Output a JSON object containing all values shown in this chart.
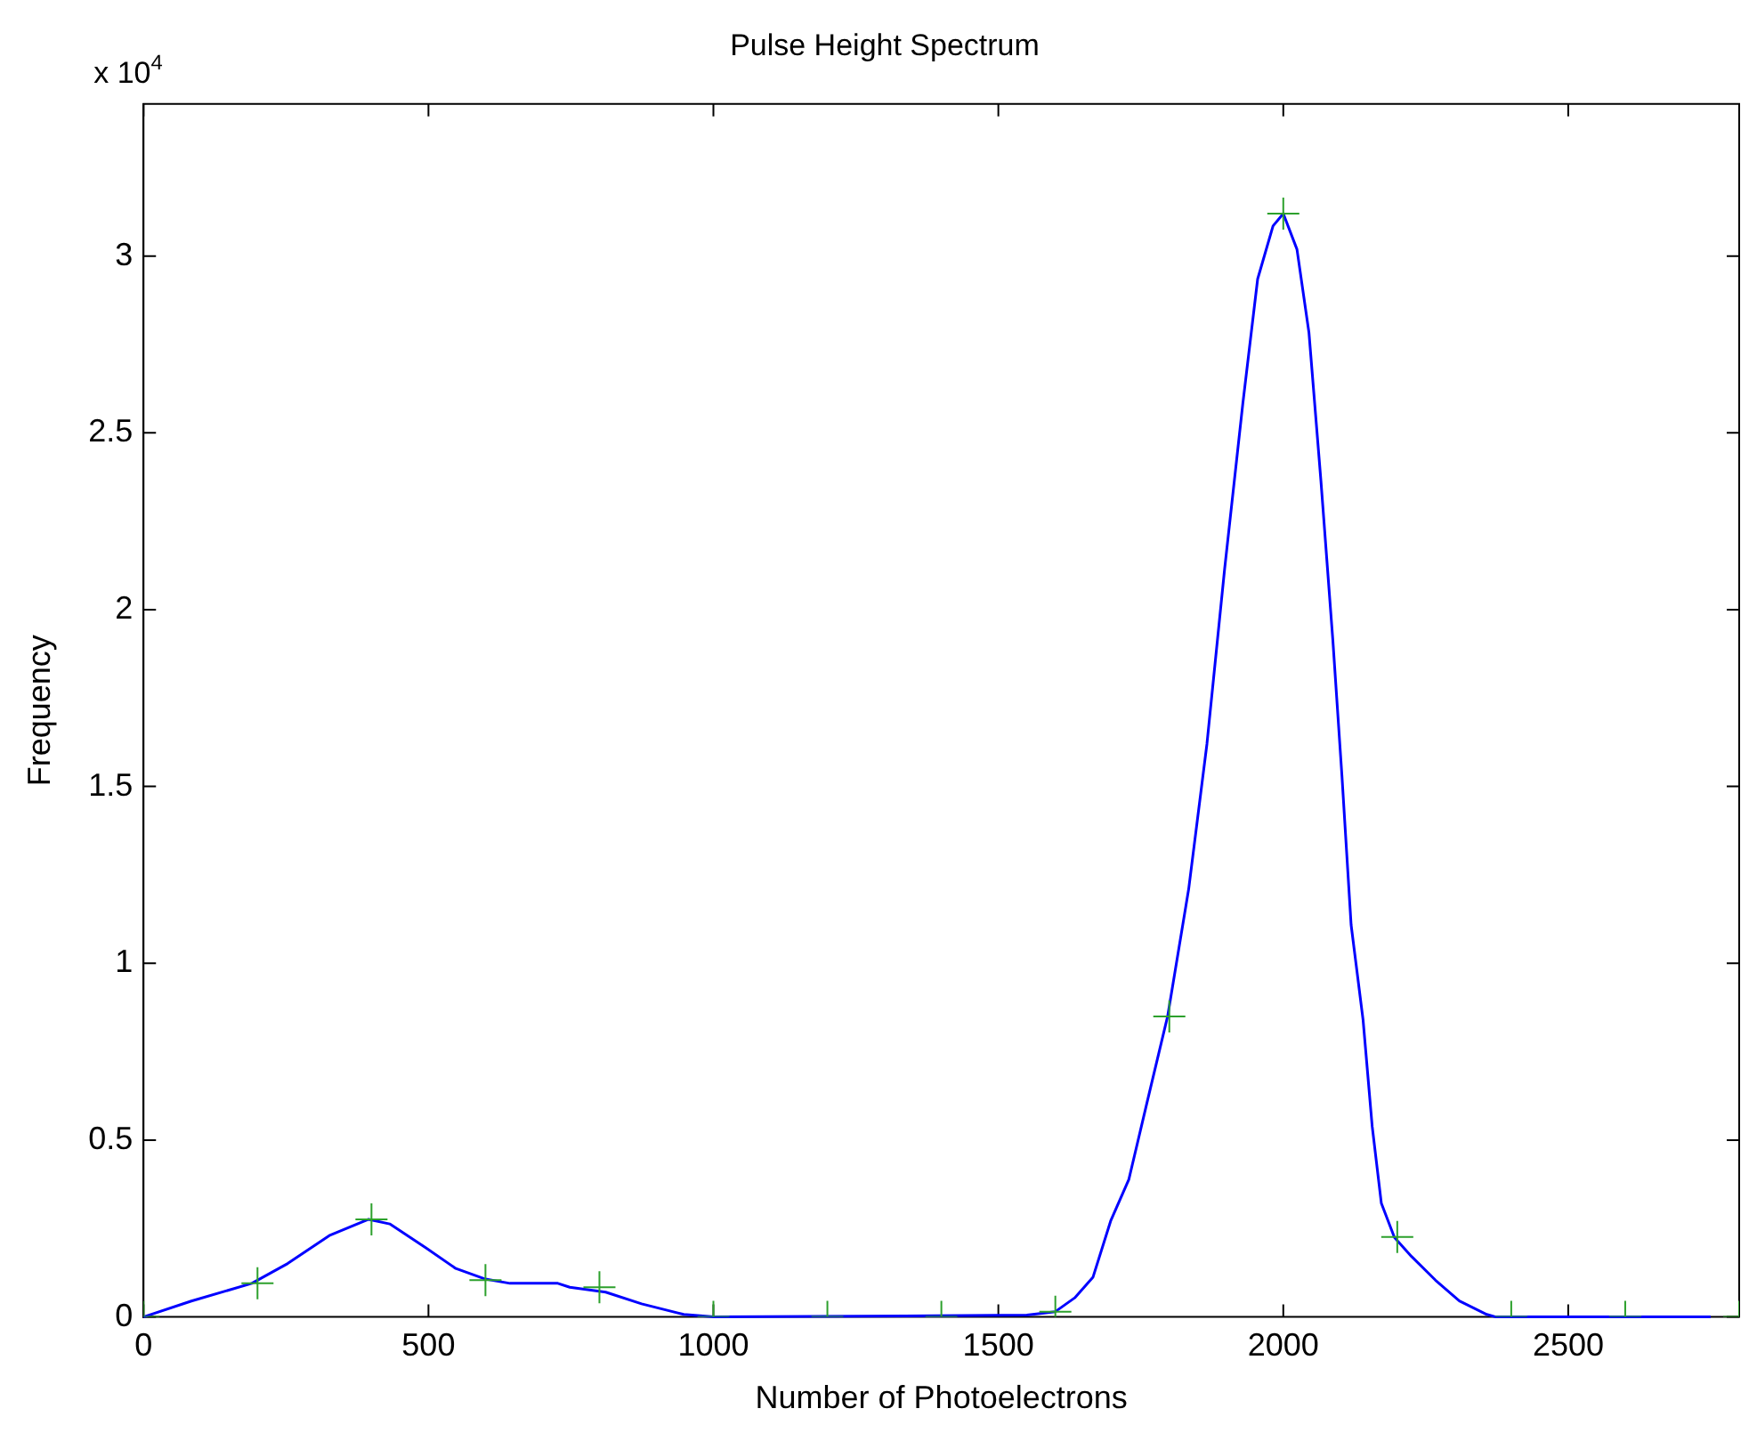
{
  "chart_data": {
    "type": "line",
    "title": "Pulse Height Spectrum",
    "xlabel": "Number of Photoelectrons",
    "ylabel": "Frequency",
    "annotations": [
      "x 10$^{4}$"
    ],
    "series": [
      {
        "color": "#0000ff",
        "marker": "none",
        "x": [
          0,
          84,
          190,
          253,
          326,
          395,
          432,
          495,
          548,
          600,
          643,
          727,
          748,
          811,
          874,
          948,
          1001,
          1550,
          1600,
          1634,
          1666,
          1697,
          1729,
          1761,
          1797,
          1834,
          1866,
          1897,
          1929,
          1955,
          1982,
          2000,
          2024,
          2045,
          2066,
          2087,
          2103,
          2119,
          2140,
          2156,
          2172,
          2195,
          2225,
          2267,
          2309,
          2357,
          2373,
          2750
        ],
        "values": [
          0,
          0.045,
          0.095,
          0.151,
          0.23,
          0.276,
          0.263,
          0.196,
          0.137,
          0.107,
          0.095,
          0.095,
          0.084,
          0.07,
          0.037,
          0.007,
          0,
          0.005,
          0.015,
          0.054,
          0.112,
          0.271,
          0.389,
          0.607,
          0.85,
          1.21,
          1.62,
          2.114,
          2.583,
          2.935,
          3.085,
          3.12,
          3.019,
          2.784,
          2.365,
          1.913,
          1.528,
          1.109,
          0.84,
          0.539,
          0.322,
          0.225,
          0.171,
          0.104,
          0.045,
          0.007,
          0,
          0
        ]
      },
      {
        "type": "scatter",
        "color": "#2ca02c",
        "marker": "cross",
        "x": [
          0,
          200,
          400,
          600,
          800,
          1000,
          1200,
          1400,
          1600,
          1800,
          2000,
          2200,
          2400,
          2600,
          2800
        ],
        "values": [
          0,
          0.095,
          0.276,
          0.104,
          0.084,
          0,
          0,
          0,
          0.015,
          0.85,
          3.12,
          0.226,
          0,
          0,
          0
        ]
      }
    ],
    "xlim": [
      0,
      2800
    ],
    "xticks": [
      0,
      500,
      1000,
      1500,
      2000,
      2500
    ],
    "ylim": [
      0,
      3.43
    ],
    "yticks": [
      0,
      0.5,
      1,
      1.5,
      2,
      2.5,
      3
    ],
    "legend": false
  }
}
